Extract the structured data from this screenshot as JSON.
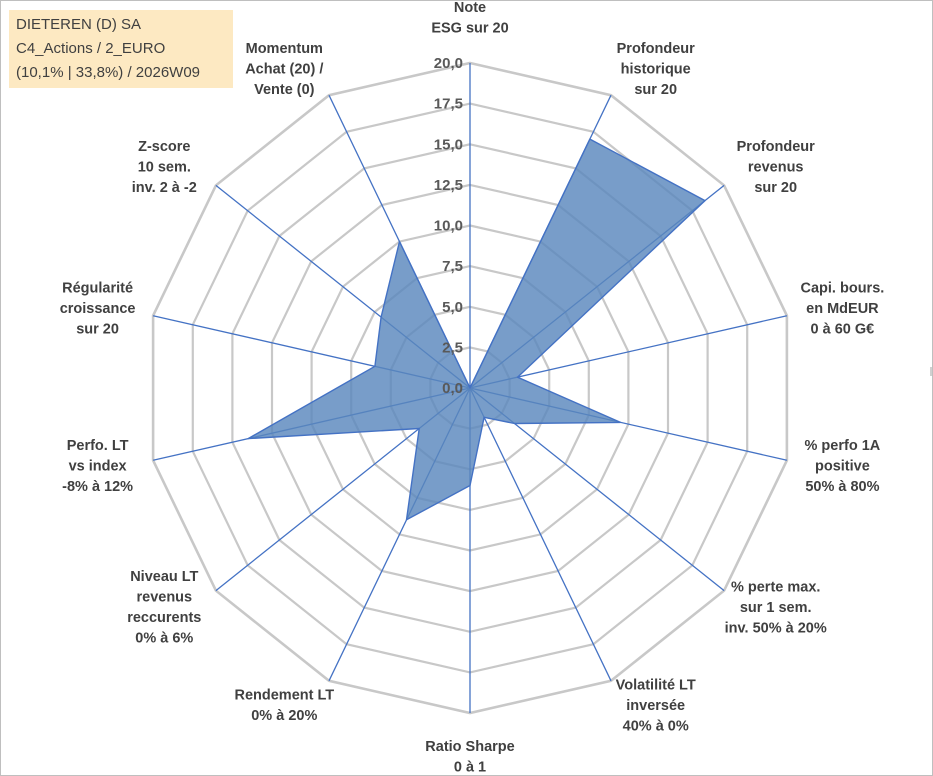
{
  "info_box": {
    "line1": "DIETEREN (D) SA",
    "line2": "C4_Actions / 2_EURO",
    "line3": "(10,1% | 33,8%) / 2026W09"
  },
  "colors": {
    "fill": "#5a87bd",
    "stroke": "#4472c4",
    "grid": "#c8c8c8",
    "spoke": "#4472c4"
  },
  "chart_data": {
    "type": "radar",
    "title": "",
    "rmin": 0,
    "rmax": 20,
    "ticks": [
      "0,0",
      "2,5",
      "5,0",
      "7,5",
      "10,0",
      "12,5",
      "15,0",
      "17,5",
      "20,0"
    ],
    "axes": [
      {
        "label": [
          "Note",
          "ESG sur 20"
        ],
        "value": 0.0
      },
      {
        "label": [
          "Profondeur",
          "historique",
          "sur 20"
        ],
        "value": 17.0
      },
      {
        "label": [
          "Profondeur",
          "revenus",
          "sur 20"
        ],
        "value": 18.5
      },
      {
        "label": [
          "Capi. bours.",
          "en MdEUR",
          "0 à 60 G€"
        ],
        "value": 3.0
      },
      {
        "label": [
          "% perfo 1A",
          "positive",
          "50% à 80%"
        ],
        "value": 9.5
      },
      {
        "label": [
          "% perte max.",
          "sur 1 sem.",
          "inv. 50% à 20%"
        ],
        "value": 3.5
      },
      {
        "label": [
          "Volatilité LT",
          "inversée",
          "40% à 0%"
        ],
        "value": 2.0
      },
      {
        "label": [
          "Ratio Sharpe",
          "0 à 1"
        ],
        "value": 6.0
      },
      {
        "label": [
          "Rendement LT",
          "0% à 20%"
        ],
        "value": 9.0
      },
      {
        "label": [
          "Niveau LT",
          "revenus",
          "reccurents",
          "0% à 6%"
        ],
        "value": 4.0
      },
      {
        "label": [
          "Perfo. LT",
          "vs index",
          "-8% à 12%"
        ],
        "value": 14.0
      },
      {
        "label": [
          "Régularité",
          "croissance",
          "sur 20"
        ],
        "value": 6.0
      },
      {
        "label": [
          "Z-score",
          "10 sem.",
          "inv. 2 à -2"
        ],
        "value": 7.0
      },
      {
        "label": [
          "Momentum",
          "Achat (20) /",
          "Vente (0)"
        ],
        "value": 10.0
      }
    ]
  }
}
